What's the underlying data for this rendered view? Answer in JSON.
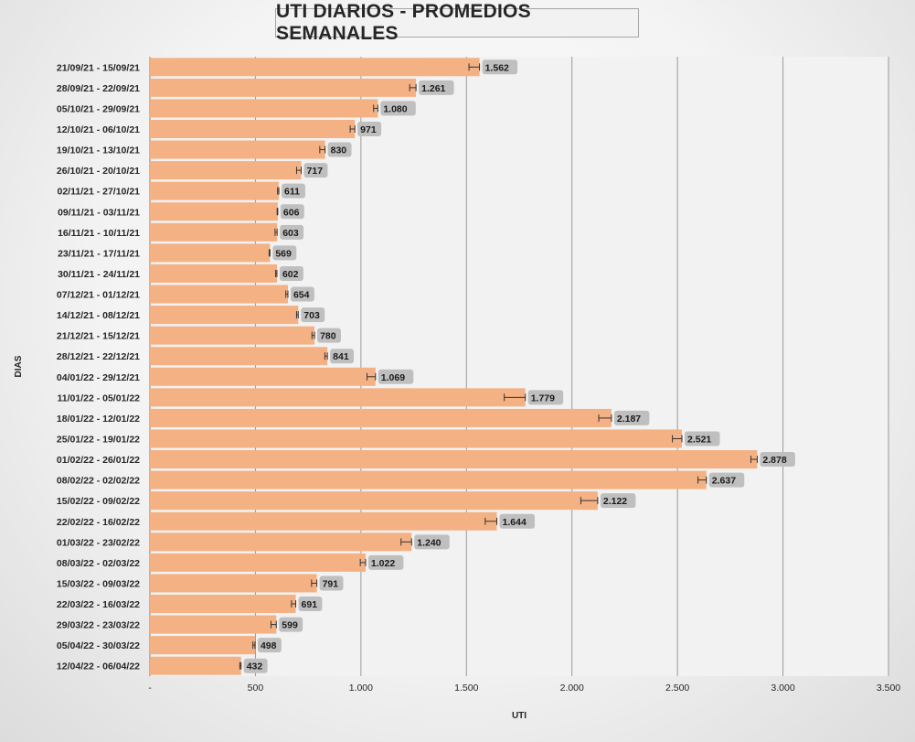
{
  "chart_data": {
    "type": "bar",
    "orientation": "horizontal",
    "title": "UTI DIARIOS - PROMEDIOS SEMANALES",
    "xlabel": "UTI",
    "ylabel": "DIAS",
    "xlim": [
      0,
      3500
    ],
    "x_ticks": [
      "-",
      "500",
      "1.000",
      "1.500",
      "2.000",
      "2.500",
      "3.000",
      "3.500"
    ],
    "grid": "vertical",
    "bar_color": "#F4B183",
    "error_bars": true,
    "categories": [
      "21/09/21 - 15/09/21",
      "28/09/21 - 22/09/21",
      "05/10/21 - 29/09/21",
      "12/10/21 - 06/10/21",
      "19/10/21 - 13/10/21",
      "26/10/21 - 20/10/21",
      "02/11/21 - 27/10/21",
      "09/11/21 - 03/11/21",
      "16/11/21 - 10/11/21",
      "23/11/21 - 17/11/21",
      "30/11/21 - 24/11/21",
      "07/12/21 - 01/12/21",
      "14/12/21 - 08/12/21",
      "21/12/21 - 15/12/21",
      "28/12/21 - 22/12/21",
      "04/01/22 - 29/12/21",
      "11/01/22 - 05/01/22",
      "18/01/22 - 12/01/22",
      "25/01/22 - 19/01/22",
      "01/02/22 - 26/01/22",
      "08/02/22 - 02/02/22",
      "15/02/22 - 09/02/22",
      "22/02/22 - 16/02/22",
      "01/03/22 - 23/02/22",
      "08/03/22 - 02/03/22",
      "15/03/22 - 09/03/22",
      "22/03/22 - 16/03/22",
      "29/03/22 - 23/03/22",
      "05/04/22 - 30/03/22",
      "12/04/22 - 06/04/22"
    ],
    "values": [
      1562,
      1261,
      1080,
      971,
      830,
      717,
      611,
      606,
      603,
      569,
      602,
      654,
      703,
      780,
      841,
      1069,
      1779,
      2187,
      2521,
      2878,
      2637,
      2122,
      1644,
      1240,
      1022,
      791,
      691,
      599,
      498,
      432
    ],
    "value_labels": [
      "1.562",
      "1.261",
      "1.080",
      "971",
      "830",
      "717",
      "611",
      "606",
      "603",
      "569",
      "602",
      "654",
      "703",
      "780",
      "841",
      "1.069",
      "1.779",
      "2.187",
      "2.521",
      "2.878",
      "2.637",
      "2.122",
      "1.644",
      "1.240",
      "1.022",
      "791",
      "691",
      "599",
      "498",
      "432"
    ],
    "error_minus": [
      50,
      30,
      20,
      22,
      25,
      22,
      6,
      3,
      10,
      4,
      6,
      10,
      8,
      12,
      12,
      40,
      100,
      60,
      45,
      30,
      40,
      80,
      55,
      50,
      25,
      25,
      20,
      25,
      10,
      6
    ]
  }
}
